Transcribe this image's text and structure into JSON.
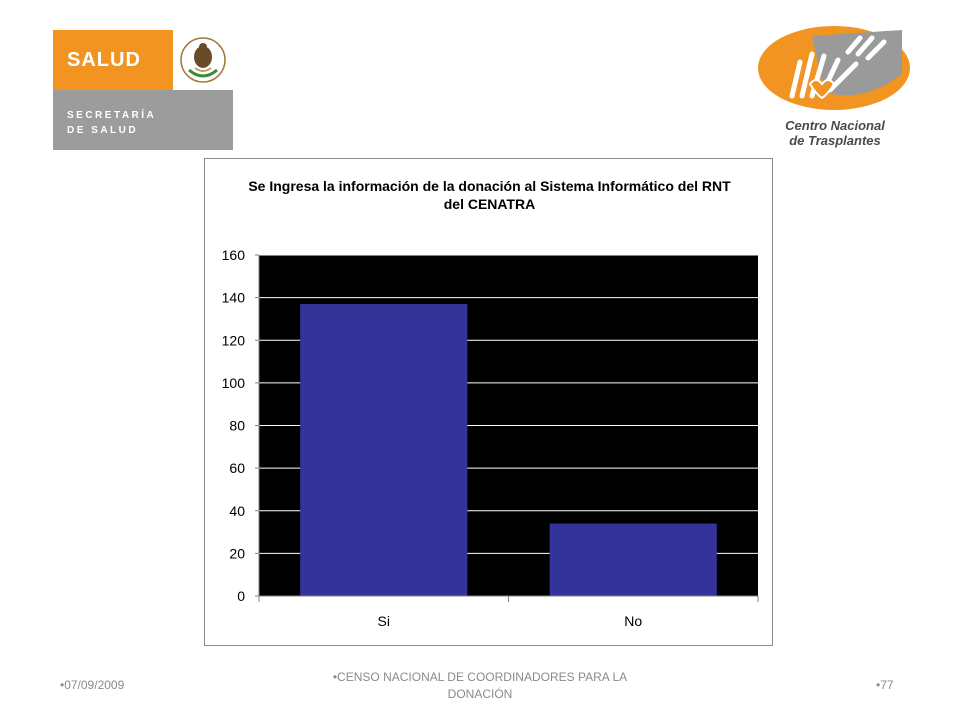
{
  "logos": {
    "salud": {
      "word": "SALUD",
      "line1": "SECRETARÍA",
      "line2": "DE SALUD"
    },
    "cenatra": {
      "line1": "Centro Nacional",
      "line2": "de Trasplantes"
    }
  },
  "chart_data": {
    "type": "bar",
    "title": "Se Ingresa la información de la donación al Sistema Informático del RNT del CENATRA",
    "categories": [
      "Si",
      "No"
    ],
    "values": [
      137,
      34
    ],
    "xlabel": "",
    "ylabel": "",
    "ylim": [
      0,
      160
    ],
    "yticks": [
      0,
      20,
      40,
      60,
      80,
      100,
      120,
      140,
      160
    ],
    "grid": true,
    "legend": "none",
    "colors": {
      "bar": "#333399",
      "plot_background": "#000000",
      "gridline": "#ffffff"
    }
  },
  "footer": {
    "date": "•07/09/2009",
    "center": "•CENSO NACIONAL DE COORDINADORES PARA LA DONACIÓN",
    "page": "•77"
  }
}
